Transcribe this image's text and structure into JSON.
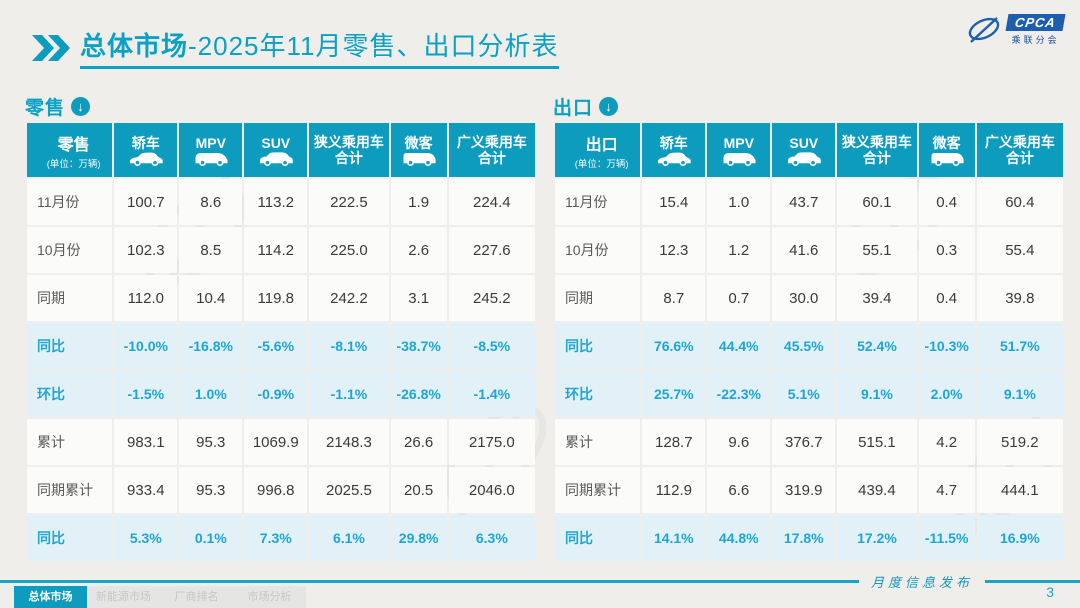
{
  "header": {
    "title_bold": "总体市场",
    "title_rest": "-2025年11月零售、出口分析表"
  },
  "logo": {
    "text": "CPCA",
    "subtext": "乘联分会"
  },
  "colors": {
    "accent_teal": "#0d9cbe",
    "percent_text": "#1fa5d2",
    "percent_row_bg": "#e2f1f8",
    "logo_blue": "#1d5fae"
  },
  "tables": [
    {
      "id": "retail",
      "section_label": "零售",
      "unit_label": "(单位：万辆)",
      "columns": [
        {
          "label": "轿车",
          "icon": "sedan-icon"
        },
        {
          "label": "MPV",
          "icon": "mpv-icon"
        },
        {
          "label": "SUV",
          "icon": "suv-icon"
        },
        {
          "label": "狭义乘用车",
          "sublabel": "合计"
        },
        {
          "label": "微客",
          "icon": "minibus-icon"
        },
        {
          "label": "广义乘用车",
          "sublabel": "合计"
        }
      ],
      "rows": [
        {
          "label": "11月份",
          "type": "value",
          "cells": [
            "100.7",
            "8.6",
            "113.2",
            "222.5",
            "1.9",
            "224.4"
          ]
        },
        {
          "label": "10月份",
          "type": "value",
          "cells": [
            "102.3",
            "8.5",
            "114.2",
            "225.0",
            "2.6",
            "227.6"
          ]
        },
        {
          "label": "同期",
          "type": "value",
          "cells": [
            "112.0",
            "10.4",
            "119.8",
            "242.2",
            "3.1",
            "245.2"
          ]
        },
        {
          "label": "同比",
          "type": "percent",
          "cells": [
            "-10.0%",
            "-16.8%",
            "-5.6%",
            "-8.1%",
            "-38.7%",
            "-8.5%"
          ]
        },
        {
          "label": "环比",
          "type": "percent",
          "cells": [
            "-1.5%",
            "1.0%",
            "-0.9%",
            "-1.1%",
            "-26.8%",
            "-1.4%"
          ]
        },
        {
          "label": "累计",
          "type": "value",
          "cells": [
            "983.1",
            "95.3",
            "1069.9",
            "2148.3",
            "26.6",
            "2175.0"
          ]
        },
        {
          "label": "同期累计",
          "type": "value",
          "cells": [
            "933.4",
            "95.3",
            "996.8",
            "2025.5",
            "20.5",
            "2046.0"
          ]
        },
        {
          "label": "同比",
          "type": "percent",
          "cells": [
            "5.3%",
            "0.1%",
            "7.3%",
            "6.1%",
            "29.8%",
            "6.3%"
          ]
        }
      ]
    },
    {
      "id": "export",
      "section_label": "出口",
      "unit_label": "(单位：万辆)",
      "columns": [
        {
          "label": "轿车",
          "icon": "sedan-icon"
        },
        {
          "label": "MPV",
          "icon": "mpv-icon"
        },
        {
          "label": "SUV",
          "icon": "suv-icon"
        },
        {
          "label": "狭义乘用车",
          "sublabel": "合计"
        },
        {
          "label": "微客",
          "icon": "minibus-icon"
        },
        {
          "label": "广义乘用车",
          "sublabel": "合计"
        }
      ],
      "rows": [
        {
          "label": "11月份",
          "type": "value",
          "cells": [
            "15.4",
            "1.0",
            "43.7",
            "60.1",
            "0.4",
            "60.4"
          ]
        },
        {
          "label": "10月份",
          "type": "value",
          "cells": [
            "12.3",
            "1.2",
            "41.6",
            "55.1",
            "0.3",
            "55.4"
          ]
        },
        {
          "label": "同期",
          "type": "value",
          "cells": [
            "8.7",
            "0.7",
            "30.0",
            "39.4",
            "0.4",
            "39.8"
          ]
        },
        {
          "label": "同比",
          "type": "percent",
          "cells": [
            "76.6%",
            "44.4%",
            "45.5%",
            "52.4%",
            "-10.3%",
            "51.7%"
          ]
        },
        {
          "label": "环比",
          "type": "percent",
          "cells": [
            "25.7%",
            "-22.3%",
            "5.1%",
            "9.1%",
            "2.0%",
            "9.1%"
          ]
        },
        {
          "label": "累计",
          "type": "value",
          "cells": [
            "128.7",
            "9.6",
            "376.7",
            "515.1",
            "4.2",
            "519.2"
          ]
        },
        {
          "label": "同期累计",
          "type": "value",
          "cells": [
            "112.9",
            "6.6",
            "319.9",
            "439.4",
            "4.7",
            "444.1"
          ]
        },
        {
          "label": "同比",
          "type": "percent",
          "cells": [
            "14.1%",
            "44.8%",
            "17.8%",
            "17.2%",
            "-11.5%",
            "16.9%"
          ]
        }
      ]
    }
  ],
  "tabs": [
    {
      "label": "总体市场",
      "active": true
    },
    {
      "label": "新能源市场",
      "active": false
    },
    {
      "label": "厂商排名",
      "active": false
    },
    {
      "label": "市场分析",
      "active": false
    }
  ],
  "footer": {
    "caption": "月度信息发布",
    "page_number": "3"
  }
}
